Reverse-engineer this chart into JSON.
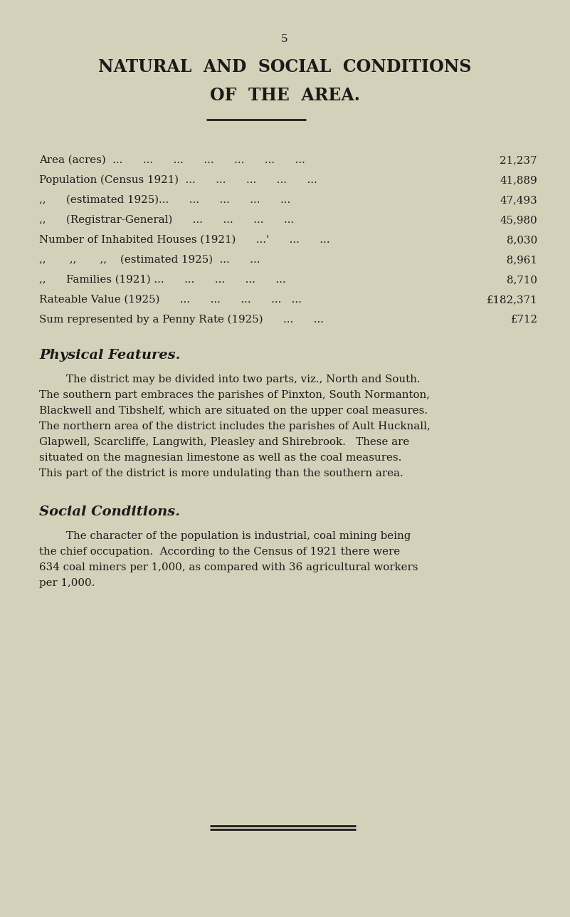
{
  "bg_color": "#d4d1bb",
  "text_color": "#1a1a18",
  "page_number": "5",
  "title_line1": "NATURAL  AND  SOCIAL  CONDITIONS",
  "title_line2": "OF  THE  AREA.",
  "table_rows": [
    {
      "label": "Area (acres)  ...      ...      ...      ...      ...      ...      ...",
      "value": "21,237"
    },
    {
      "label": "Population (Census 1921)  ...      ...      ...      ...      ...",
      "value": "41,889"
    },
    {
      "label": ",,      (estimated 1925)...      ...      ...      ...      ...",
      "value": "47,493"
    },
    {
      "label": ",,      (Registrar-General)      ...      ...      ...      ...",
      "value": "45,980"
    },
    {
      "label": "Number of Inhabited Houses (1921)      ...'      ...      ...",
      "value": "8,030"
    },
    {
      "label": ",,       ,,       ,,    (estimated 1925)  ...      ...",
      "value": " 8,961"
    },
    {
      "label": ",,      Families (1921) ...      ...      ...      ...      ...",
      "value": "8,710"
    },
    {
      "label": "Rateable Value (1925)      ...      ...      ...      ...   ...",
      "value": "£182,371"
    },
    {
      "label": "Sum represented by a Penny Rate (1925)      ...      ...",
      "value": "£712"
    }
  ],
  "section1_title": "Physical Features.",
  "section1_lines": [
    "        The district may be divided into two parts, viz., North and South.",
    "The southern part embraces the parishes of Pinxton, South Normanton,",
    "Blackwell and Tibshelf, which are situated on the upper coal measures.",
    "The northern area of the district includes the parishes of Ault Hucknall,",
    "Glapwell, Scarcliffe, Langwith, Pleasley and Shirebrook.   These are",
    "situated on the magnesian limestone as well as the coal measures.",
    "This part of the district is more undulating than the southern area."
  ],
  "section2_title": "Social Conditions.",
  "section2_lines": [
    "        The character of the population is industrial, coal mining being",
    "the chief occupation.  According to the Census of 1921 there were",
    "634 coal miners per 1,000, as compared with 36 agricultural workers",
    "per 1,000."
  ]
}
